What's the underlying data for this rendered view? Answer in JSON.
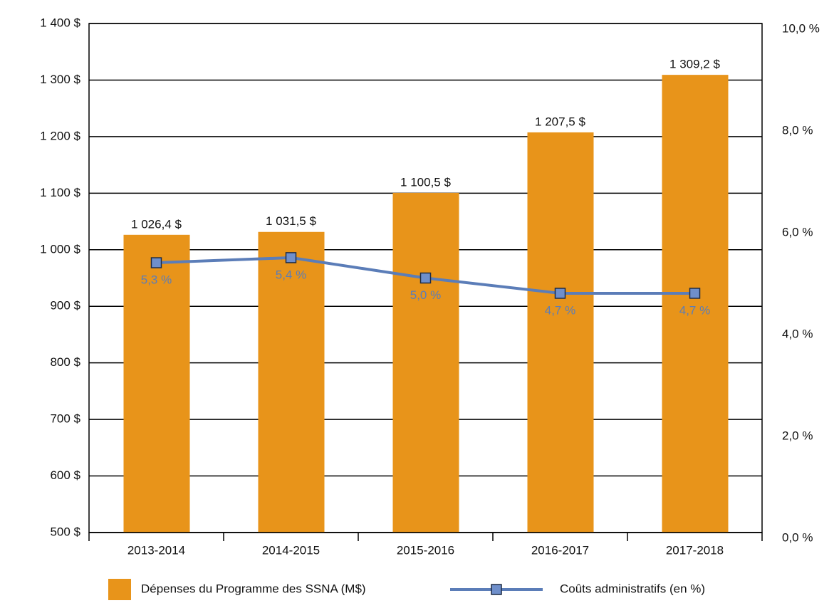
{
  "chart_data": {
    "type": "bar",
    "categories": [
      "2013-2014",
      "2014-2015",
      "2015-2016",
      "2016-2017",
      "2017-2018"
    ],
    "series": [
      {
        "name": "Dépenses du Programme des SSNA (M$)",
        "type": "bar",
        "color": "#e8941a",
        "values": [
          1026.4,
          1031.5,
          1100.5,
          1207.5,
          1309.2
        ],
        "value_labels": [
          "1 026,4 $",
          "1 031,5 $",
          "1 100,5 $",
          "1 207,5 $",
          "1 309,2 $"
        ]
      },
      {
        "name": "Coûts administratifs (en %)",
        "type": "line",
        "axis": "y2",
        "color": "#5b7db8",
        "marker_color": "#6f8fcb",
        "values": [
          5.3,
          5.4,
          5.0,
          4.7,
          4.7
        ],
        "value_labels": [
          "5,3 %",
          "5,4 %",
          "5,0 %",
          "4,7 %",
          "4,7 %"
        ]
      }
    ],
    "ylim": [
      500,
      1400
    ],
    "yticks": [
      {
        "value": 500,
        "label": "500 $"
      },
      {
        "value": 600,
        "label": "600 $"
      },
      {
        "value": 700,
        "label": "700 $"
      },
      {
        "value": 800,
        "label": "800 $"
      },
      {
        "value": 900,
        "label": "900 $"
      },
      {
        "value": 1000,
        "label": "1 000 $"
      },
      {
        "value": 1100,
        "label": "1 100 $"
      },
      {
        "value": 1200,
        "label": "1 200 $"
      },
      {
        "value": 1300,
        "label": "1 300 $"
      },
      {
        "value": 1400,
        "label": "1 400 $"
      }
    ],
    "y2lim": [
      0,
      10
    ],
    "y2ticks": [
      {
        "value": 0,
        "label": "0,0 %"
      },
      {
        "value": 2,
        "label": "2,0 %"
      },
      {
        "value": 4,
        "label": "4,0 %"
      },
      {
        "value": 6,
        "label": "6,0 %"
      },
      {
        "value": 8,
        "label": "8,0 %"
      },
      {
        "value": 10,
        "label": "10,0 %"
      }
    ],
    "grid": true
  }
}
